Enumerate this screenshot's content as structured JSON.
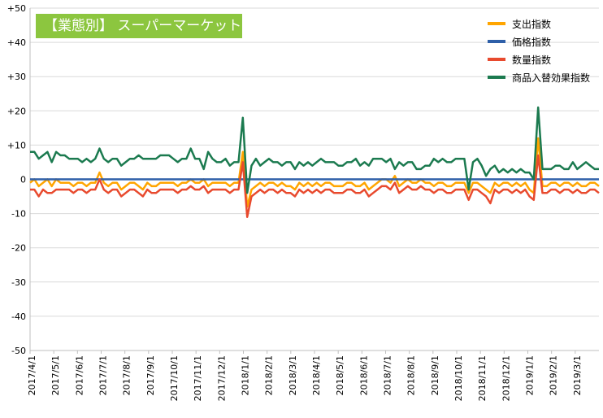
{
  "chart_data": {
    "type": "line",
    "title": "【業態別】 スーパーマーケット",
    "ylim": [
      -50,
      50
    ],
    "yticks": [
      "+50",
      "+40",
      "+30",
      "+20",
      "+10",
      "0",
      "-10",
      "-20",
      "-30",
      "-40",
      "-50"
    ],
    "ytick_values": [
      50,
      40,
      30,
      20,
      10,
      0,
      -10,
      -20,
      -30,
      -40,
      -50
    ],
    "x_tick_labels": [
      "2017/4/1",
      "2017/5/1",
      "2017/6/1",
      "2017/7/1",
      "2017/8/1",
      "2017/9/1",
      "2017/10/1",
      "2017/11/1",
      "2017/12/1",
      "2018/1/1",
      "2018/2/1",
      "2018/3/1",
      "2018/4/1",
      "2018/5/1",
      "2018/6/1",
      "2018/7/1",
      "2018/8/1",
      "2018/9/1",
      "2018/10/1",
      "2018/11/1",
      "2018/12/1",
      "2019/1/1",
      "2019/2/1",
      "2019/3/1"
    ],
    "grid": true,
    "legend_position": "top-right",
    "series": [
      {
        "name": "支出指数",
        "color": "#ffa500",
        "values": [
          -1,
          0,
          -2,
          -1,
          0,
          -2,
          0,
          -1,
          -1,
          -1,
          -2,
          -1,
          -1,
          -2,
          -1,
          -1,
          2,
          -1,
          -2,
          -1,
          -1,
          -3,
          -2,
          -1,
          -1,
          -2,
          -3,
          -1,
          -2,
          -2,
          -1,
          -1,
          -1,
          -1,
          -2,
          -1,
          -1,
          0,
          -1,
          -1,
          0,
          -2,
          -1,
          -1,
          -1,
          -1,
          -2,
          -1,
          -1,
          8,
          -8,
          -3,
          -2,
          -1,
          -2,
          -1,
          -1,
          -2,
          -1,
          -2,
          -2,
          -3,
          -1,
          -2,
          -1,
          -2,
          -1,
          -2,
          -1,
          -1,
          -2,
          -2,
          -2,
          -1,
          -1,
          -2,
          -2,
          -1,
          -3,
          -2,
          -1,
          0,
          0,
          -1,
          1,
          -2,
          -1,
          0,
          -1,
          -1,
          0,
          -1,
          -1,
          -2,
          -1,
          -1,
          -2,
          -2,
          -1,
          -1,
          -1,
          -4,
          -1,
          -1,
          -2,
          -3,
          -4,
          -1,
          -2,
          -1,
          -1,
          -2,
          -1,
          -2,
          -1,
          -3,
          -4,
          12,
          -2,
          -2,
          -1,
          -1,
          -2,
          -1,
          -1,
          -2,
          -1,
          -2,
          -2,
          -1,
          -1,
          -2
        ]
      },
      {
        "name": "価格指数",
        "color": "#2e5fa8",
        "values": [
          0,
          0,
          0,
          0,
          0,
          0,
          0,
          0,
          0,
          0,
          0,
          0,
          0,
          0,
          0,
          0,
          0,
          0,
          0,
          0,
          0,
          0,
          0,
          0,
          0,
          0,
          0,
          0,
          0,
          0,
          0,
          0,
          0,
          0,
          0,
          0,
          0,
          0,
          0,
          0,
          0,
          0,
          0,
          0,
          0,
          0,
          0,
          0,
          0,
          0,
          0,
          0,
          0,
          0,
          0,
          0,
          0,
          0,
          0,
          0,
          0,
          0,
          0,
          0,
          0,
          0,
          0,
          0,
          0,
          0,
          0,
          0,
          0,
          0,
          0,
          0,
          0,
          0,
          0,
          0,
          0,
          0,
          0,
          0,
          0,
          0,
          0,
          0,
          0,
          0,
          0,
          0,
          0,
          0,
          0,
          0,
          0,
          0,
          0,
          0,
          0,
          0,
          0,
          0,
          0,
          0,
          0,
          0,
          0,
          0,
          0,
          0,
          0,
          0,
          0,
          0,
          0,
          0,
          0,
          0,
          0,
          0,
          0,
          0,
          0,
          0,
          0,
          0,
          0,
          0,
          0
        ]
      },
      {
        "name": "数量指数",
        "color": "#e84a2e",
        "values": [
          -3,
          -3,
          -5,
          -3,
          -4,
          -4,
          -3,
          -3,
          -3,
          -3,
          -4,
          -3,
          -3,
          -4,
          -3,
          -3,
          0,
          -3,
          -4,
          -3,
          -3,
          -5,
          -4,
          -3,
          -3,
          -4,
          -5,
          -3,
          -4,
          -4,
          -3,
          -3,
          -3,
          -3,
          -4,
          -3,
          -3,
          -2,
          -3,
          -3,
          -2,
          -4,
          -3,
          -3,
          -3,
          -3,
          -4,
          -3,
          -3,
          5,
          -11,
          -5,
          -4,
          -3,
          -4,
          -3,
          -3,
          -4,
          -3,
          -4,
          -4,
          -5,
          -3,
          -4,
          -3,
          -4,
          -3,
          -4,
          -3,
          -3,
          -4,
          -4,
          -4,
          -3,
          -3,
          -4,
          -4,
          -3,
          -5,
          -4,
          -3,
          -2,
          -2,
          -3,
          -1,
          -4,
          -3,
          -2,
          -3,
          -3,
          -2,
          -3,
          -3,
          -4,
          -3,
          -3,
          -4,
          -4,
          -3,
          -3,
          -3,
          -6,
          -3,
          -3,
          -4,
          -5,
          -7,
          -3,
          -4,
          -3,
          -3,
          -4,
          -3,
          -4,
          -3,
          -5,
          -6,
          7,
          -4,
          -4,
          -3,
          -3,
          -4,
          -3,
          -3,
          -4,
          -3,
          -4,
          -4,
          -3,
          -3,
          -4
        ]
      },
      {
        "name": "商品入替効果指数",
        "color": "#1b7a4f",
        "values": [
          8,
          8,
          6,
          7,
          8,
          5,
          8,
          7,
          7,
          6,
          6,
          6,
          5,
          6,
          5,
          6,
          9,
          6,
          5,
          6,
          6,
          4,
          5,
          6,
          6,
          7,
          6,
          6,
          6,
          6,
          7,
          7,
          7,
          6,
          5,
          6,
          6,
          9,
          6,
          6,
          3,
          8,
          6,
          5,
          5,
          6,
          4,
          5,
          5,
          18,
          -4,
          4,
          6,
          4,
          5,
          6,
          5,
          5,
          4,
          5,
          5,
          3,
          5,
          4,
          5,
          4,
          5,
          6,
          5,
          5,
          5,
          4,
          4,
          5,
          5,
          6,
          4,
          5,
          4,
          6,
          6,
          6,
          5,
          6,
          3,
          5,
          4,
          5,
          5,
          3,
          3,
          4,
          4,
          6,
          5,
          6,
          5,
          5,
          6,
          6,
          6,
          -3,
          5,
          6,
          4,
          1,
          3,
          4,
          2,
          3,
          2,
          3,
          2,
          3,
          2,
          2,
          0,
          21,
          3,
          3,
          3,
          4,
          4,
          3,
          3,
          5,
          3,
          4,
          5,
          4,
          3,
          3
        ]
      }
    ]
  }
}
